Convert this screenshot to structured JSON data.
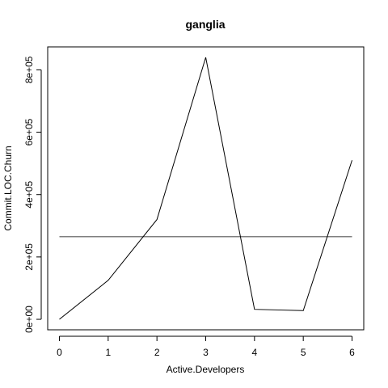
{
  "chart_data": {
    "type": "line",
    "title": "ganglia",
    "xlabel": "Active.Developers",
    "ylabel": "Commit.LOC.Churn",
    "x": [
      0,
      1,
      2,
      3,
      4,
      5,
      6
    ],
    "series": [
      {
        "values": [
          0,
          125000,
          320000,
          840000,
          32000,
          28000,
          510000
        ]
      }
    ],
    "reference_line": {
      "y": 265000
    },
    "xlim": [
      -0.24,
      6.24
    ],
    "ylim": [
      -33600,
      873600
    ],
    "x_ticks": [
      0,
      1,
      2,
      3,
      4,
      5,
      6
    ],
    "x_tick_labels": [
      "0",
      "1",
      "2",
      "3",
      "4",
      "5",
      "6"
    ],
    "y_ticks": [
      0,
      200000,
      400000,
      600000,
      800000
    ],
    "y_tick_labels": [
      "0e+00",
      "2e+05",
      "4e+05",
      "6e+05",
      "8e+05"
    ],
    "grid": false,
    "colors": {
      "line": "#000000",
      "reference_line": "#555555",
      "axis": "#000000",
      "background": "#ffffff"
    }
  }
}
